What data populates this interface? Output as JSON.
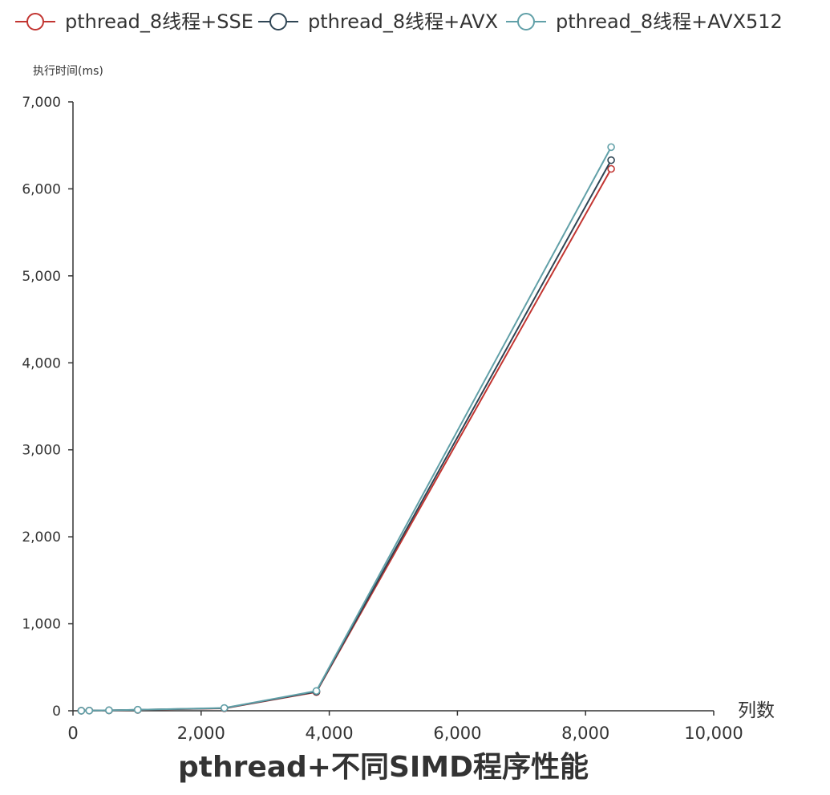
{
  "chart_data": {
    "type": "line",
    "title": "pthread+不同SIMD程序性能",
    "xlabel": "列数",
    "ylabel": "执行时间(ms)",
    "xlim": [
      0,
      10000
    ],
    "ylim": [
      0,
      7000
    ],
    "x_ticks": [
      "0",
      "2,000",
      "4,000",
      "6,000",
      "8,000",
      "10,000"
    ],
    "x_tick_values": [
      0,
      2000,
      4000,
      6000,
      8000,
      10000
    ],
    "y_ticks": [
      "0",
      "1,000",
      "2,000",
      "3,000",
      "4,000",
      "5,000",
      "6,000",
      "7,000"
    ],
    "y_tick_values": [
      0,
      1000,
      2000,
      3000,
      4000,
      5000,
      6000,
      7000
    ],
    "grid": false,
    "legend_position": "top",
    "series": [
      {
        "name": "pthread_8线程+SSE",
        "color": "#c23531",
        "points": [
          [
            130,
            1
          ],
          [
            254,
            2
          ],
          [
            562,
            5
          ],
          [
            1011,
            10
          ],
          [
            2362,
            28
          ],
          [
            3799,
            215
          ],
          [
            8399,
            6230
          ]
        ]
      },
      {
        "name": "pthread_8线程+AVX",
        "color": "#2f4554",
        "points": [
          [
            130,
            1
          ],
          [
            254,
            2
          ],
          [
            562,
            5
          ],
          [
            1011,
            11
          ],
          [
            2362,
            30
          ],
          [
            3799,
            220
          ],
          [
            8399,
            6330
          ]
        ]
      },
      {
        "name": "pthread_8线程+AVX512",
        "color": "#61a0a8",
        "points": [
          [
            130,
            1
          ],
          [
            254,
            2
          ],
          [
            562,
            6
          ],
          [
            1011,
            12
          ],
          [
            2362,
            32
          ],
          [
            3799,
            228
          ],
          [
            8399,
            6480
          ]
        ]
      }
    ]
  }
}
